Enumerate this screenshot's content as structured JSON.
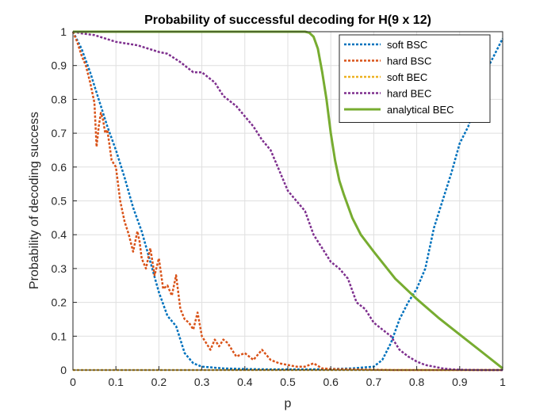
{
  "chart_data": {
    "type": "line",
    "title": "Probability of successful decoding for H(9 x 12)",
    "xlabel": "p",
    "ylabel": "Probability of decoding success",
    "xlim": [
      0,
      1
    ],
    "ylim": [
      0,
      1
    ],
    "xticks": [
      0,
      0.1,
      0.2,
      0.3,
      0.4,
      0.5,
      0.6,
      0.7,
      0.8,
      0.9,
      1
    ],
    "yticks": [
      0,
      0.1,
      0.2,
      0.3,
      0.4,
      0.5,
      0.6,
      0.7,
      0.8,
      0.9,
      1
    ],
    "xtick_labels": [
      "0",
      "0.1",
      "0.2",
      "0.3",
      "0.4",
      "0.5",
      "0.6",
      "0.7",
      "0.8",
      "0.9",
      "1"
    ],
    "ytick_labels": [
      "0",
      "0.1",
      "0.2",
      "0.3",
      "0.4",
      "0.5",
      "0.6",
      "0.7",
      "0.8",
      "0.9",
      "1"
    ],
    "grid": true,
    "legend_position": "top-right",
    "series": [
      {
        "name": "soft BSC",
        "color": "#0072BD",
        "dash": "dotted",
        "x": [
          0,
          0.02,
          0.04,
          0.06,
          0.08,
          0.1,
          0.12,
          0.14,
          0.16,
          0.18,
          0.2,
          0.22,
          0.24,
          0.26,
          0.28,
          0.3,
          0.35,
          0.4,
          0.45,
          0.5,
          0.55,
          0.6,
          0.65,
          0.7,
          0.72,
          0.74,
          0.76,
          0.78,
          0.8,
          0.82,
          0.84,
          0.86,
          0.88,
          0.9,
          0.92,
          0.94,
          0.96,
          0.98,
          1
        ],
        "y": [
          1,
          0.95,
          0.88,
          0.8,
          0.72,
          0.65,
          0.57,
          0.48,
          0.41,
          0.32,
          0.23,
          0.16,
          0.13,
          0.05,
          0.02,
          0.01,
          0.005,
          0.003,
          0.002,
          0.002,
          0.002,
          0.003,
          0.005,
          0.01,
          0.03,
          0.08,
          0.15,
          0.2,
          0.24,
          0.3,
          0.42,
          0.5,
          0.58,
          0.67,
          0.72,
          0.8,
          0.88,
          0.93,
          0.98
        ]
      },
      {
        "name": "hard BSC",
        "color": "#D95319",
        "dash": "dotted",
        "x": [
          0,
          0.01,
          0.02,
          0.03,
          0.04,
          0.05,
          0.055,
          0.06,
          0.065,
          0.07,
          0.075,
          0.08,
          0.09,
          0.1,
          0.11,
          0.12,
          0.13,
          0.14,
          0.15,
          0.155,
          0.16,
          0.17,
          0.18,
          0.19,
          0.2,
          0.21,
          0.22,
          0.23,
          0.24,
          0.25,
          0.26,
          0.27,
          0.28,
          0.29,
          0.3,
          0.31,
          0.32,
          0.33,
          0.34,
          0.35,
          0.36,
          0.37,
          0.38,
          0.4,
          0.42,
          0.44,
          0.46,
          0.48,
          0.5,
          0.52,
          0.54,
          0.56,
          0.58,
          0.6,
          0.65,
          0.7,
          0.75,
          0.8,
          0.9,
          1
        ],
        "y": [
          1,
          0.97,
          0.93,
          0.9,
          0.85,
          0.79,
          0.66,
          0.72,
          0.76,
          0.74,
          0.7,
          0.71,
          0.62,
          0.6,
          0.5,
          0.44,
          0.4,
          0.35,
          0.41,
          0.38,
          0.33,
          0.3,
          0.36,
          0.28,
          0.33,
          0.24,
          0.25,
          0.22,
          0.28,
          0.18,
          0.15,
          0.14,
          0.12,
          0.17,
          0.1,
          0.08,
          0.06,
          0.09,
          0.07,
          0.09,
          0.08,
          0.06,
          0.04,
          0.05,
          0.03,
          0.06,
          0.03,
          0.02,
          0.015,
          0.01,
          0.01,
          0.02,
          0.005,
          0.003,
          0.002,
          0.001,
          0,
          0,
          0,
          0
        ]
      },
      {
        "name": "soft BEC",
        "color": "#EDB120",
        "dash": "dotted",
        "x": [
          0,
          0.1,
          0.2,
          0.3,
          0.4,
          0.5,
          0.6,
          0.7,
          0.8,
          0.9,
          1
        ],
        "y": [
          0,
          0,
          0,
          0,
          0,
          0,
          0,
          0,
          0,
          0,
          0
        ]
      },
      {
        "name": "hard BEC",
        "color": "#7E2F8E",
        "dash": "dotted",
        "x": [
          0,
          0.02,
          0.05,
          0.1,
          0.15,
          0.2,
          0.22,
          0.25,
          0.28,
          0.3,
          0.33,
          0.35,
          0.38,
          0.4,
          0.42,
          0.44,
          0.46,
          0.48,
          0.5,
          0.52,
          0.54,
          0.56,
          0.58,
          0.6,
          0.62,
          0.64,
          0.66,
          0.68,
          0.7,
          0.72,
          0.74,
          0.76,
          0.78,
          0.8,
          0.82,
          0.84,
          0.86,
          0.88,
          0.9,
          0.95,
          1
        ],
        "y": [
          1,
          0.995,
          0.99,
          0.97,
          0.96,
          0.94,
          0.935,
          0.91,
          0.88,
          0.88,
          0.85,
          0.81,
          0.78,
          0.75,
          0.72,
          0.68,
          0.65,
          0.59,
          0.53,
          0.5,
          0.47,
          0.4,
          0.36,
          0.32,
          0.3,
          0.27,
          0.2,
          0.18,
          0.14,
          0.12,
          0.1,
          0.06,
          0.04,
          0.025,
          0.015,
          0.01,
          0.005,
          0.002,
          0.001,
          0,
          0
        ]
      },
      {
        "name": "analytical BEC",
        "color": "#77AC30",
        "dash": "solid",
        "x": [
          0,
          0.1,
          0.2,
          0.3,
          0.4,
          0.5,
          0.54,
          0.55,
          0.56,
          0.57,
          0.58,
          0.59,
          0.6,
          0.61,
          0.62,
          0.63,
          0.65,
          0.67,
          0.7,
          0.75,
          0.8,
          0.85,
          0.9,
          0.95,
          1
        ],
        "y": [
          1,
          1,
          1,
          1,
          1,
          1,
          1,
          0.997,
          0.985,
          0.95,
          0.88,
          0.8,
          0.7,
          0.62,
          0.56,
          0.52,
          0.45,
          0.4,
          0.35,
          0.27,
          0.21,
          0.155,
          0.105,
          0.055,
          0.005
        ]
      }
    ]
  }
}
